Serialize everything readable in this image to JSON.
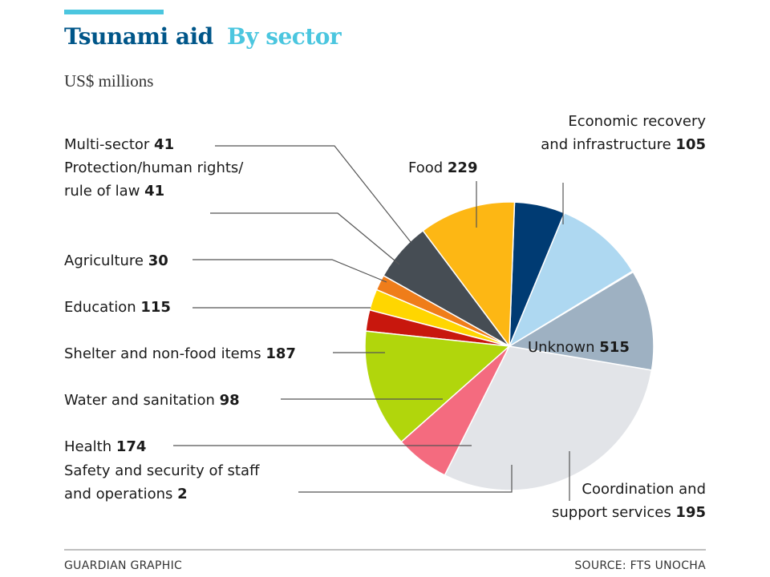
{
  "header": {
    "title": "Tsunami aid",
    "title_accent": "By sector",
    "subtitle": "US$ millions"
  },
  "footer": {
    "credit": "GUARDIAN GRAPHIC",
    "source": "SOURCE: FTS UNOCHA"
  },
  "colors": {
    "title_dark": "#005689",
    "title_accent": "#4bc6df",
    "top_rule": "#4bc6df",
    "footer_rule": "#999999"
  },
  "chart_data": {
    "type": "pie",
    "title": "Tsunami aid By sector",
    "unit": "US$ millions",
    "slices": [
      {
        "label": "Unknown",
        "label_line2": "",
        "value": 515,
        "color": "#e2e4e8"
      },
      {
        "label": "Coordination and",
        "label_line2": "support services",
        "value": 195,
        "color": "#9eb1c2"
      },
      {
        "label": "Safety and security of staff",
        "label_line2": "and operations",
        "value": 2,
        "color": "#2a2a2a"
      },
      {
        "label": "Health",
        "label_line2": "",
        "value": 174,
        "color": "#aed8f1"
      },
      {
        "label": "Water and sanitation",
        "label_line2": "",
        "value": 98,
        "color": "#003b73"
      },
      {
        "label": "Shelter and non-food items",
        "label_line2": "",
        "value": 187,
        "color": "#fdb714"
      },
      {
        "label": "Education",
        "label_line2": "",
        "value": 115,
        "color": "#464d54"
      },
      {
        "label": "Agriculture",
        "label_line2": "",
        "value": 30,
        "color": "#ef7d1a"
      },
      {
        "label": "Protection/human rights/",
        "label_line2": "rule of law",
        "value": 41,
        "color": "#ffd600"
      },
      {
        "label": "Multi-sector",
        "label_line2": "",
        "value": 41,
        "color": "#c8170d"
      },
      {
        "label": "Food",
        "label_line2": "",
        "value": 229,
        "color": "#b1d60c"
      },
      {
        "label": "Economic recovery",
        "label_line2": "and infrastructure",
        "value": 105,
        "color": "#f46b7f"
      }
    ]
  }
}
